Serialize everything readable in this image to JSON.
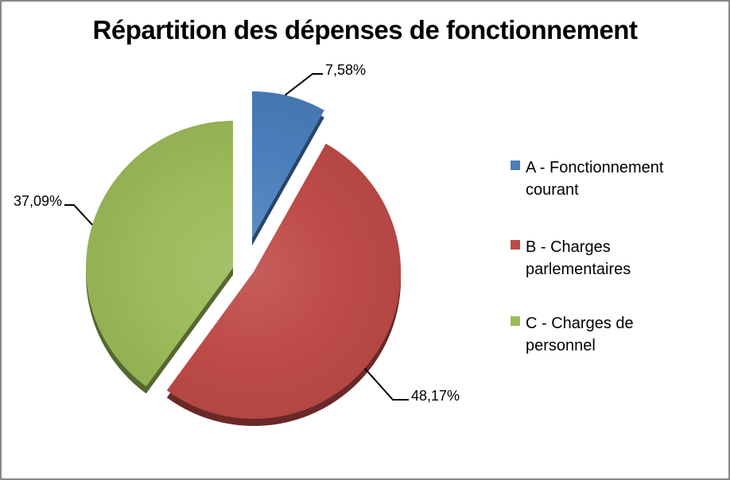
{
  "chart_data": {
    "type": "pie",
    "title": "Répartition des dépenses de fonctionnement",
    "slices": [
      {
        "id": "a",
        "label": "A - Fonctionnement courant",
        "label_lines": [
          "A - Fonctionnement",
          "courant"
        ],
        "value": 7.58,
        "display_value": "7,58%",
        "color": "#4A7EBB"
      },
      {
        "id": "b",
        "label": "B - Charges parlementaires",
        "label_lines": [
          "B - Charges",
          "parlementaires"
        ],
        "value": 48.17,
        "display_value": "48,17%",
        "color": "#BE4B48"
      },
      {
        "id": "c",
        "label": "C - Charges de personnel",
        "label_lines": [
          "C - Charges de",
          "personnel"
        ],
        "value": 37.09,
        "display_value": "37,09%",
        "color": "#9CBB59"
      }
    ],
    "legend_position": "right",
    "start_angle_deg": 0,
    "direction": "clockwise",
    "exploded": true,
    "effect": "3d-depth",
    "background": "#FFFFFF",
    "border_color": "#878787",
    "label_color": "#000000",
    "leader_line_color": "#000000"
  }
}
